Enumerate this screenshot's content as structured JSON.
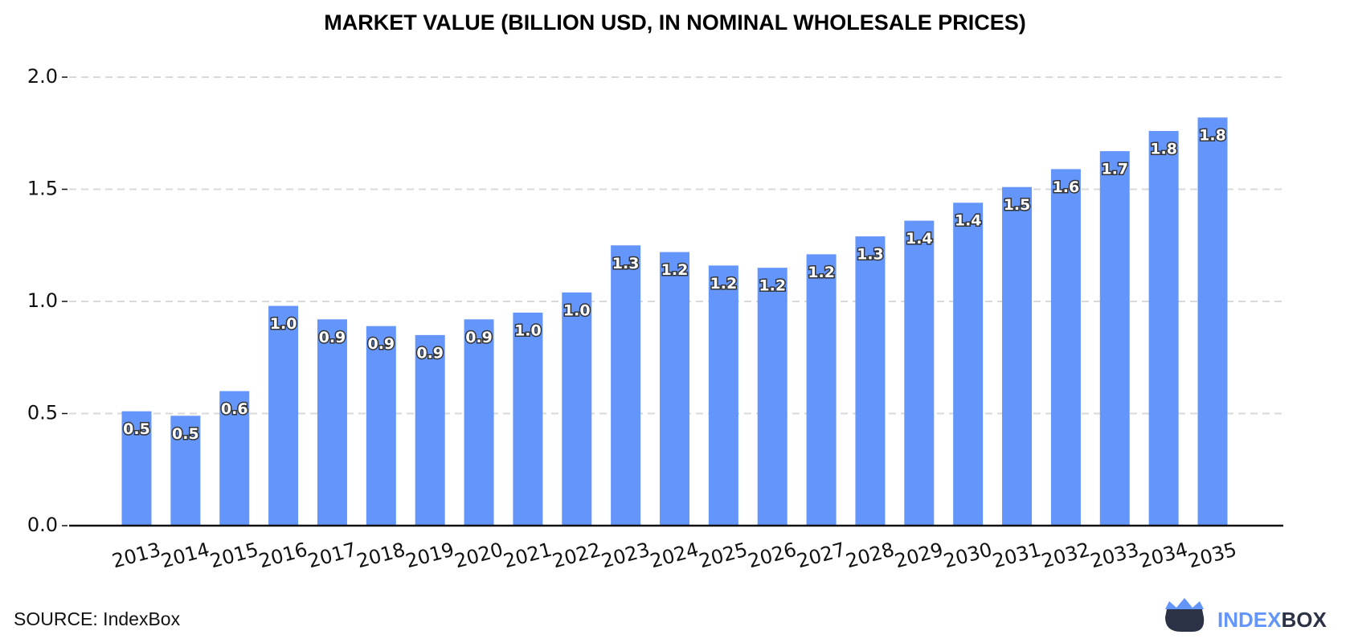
{
  "chart_data": {
    "type": "bar",
    "title": "MARKET VALUE (BILLION USD, IN NOMINAL WHOLESALE PRICES)",
    "categories": [
      "2013",
      "2014",
      "2015",
      "2016",
      "2017",
      "2018",
      "2019",
      "2020",
      "2021",
      "2022",
      "2023",
      "2024",
      "2025",
      "2026",
      "2027",
      "2028",
      "2029",
      "2030",
      "2031",
      "2032",
      "2033",
      "2034",
      "2035"
    ],
    "values": [
      0.51,
      0.49,
      0.6,
      0.98,
      0.92,
      0.89,
      0.85,
      0.92,
      0.95,
      1.04,
      1.25,
      1.22,
      1.16,
      1.15,
      1.21,
      1.29,
      1.36,
      1.44,
      1.51,
      1.59,
      1.67,
      1.76,
      1.82
    ],
    "value_labels": [
      "0.5",
      "0.5",
      "0.6",
      "1.0",
      "0.9",
      "0.9",
      "0.9",
      "0.9",
      "1.0",
      "1.0",
      "1.3",
      "1.2",
      "1.2",
      "1.2",
      "1.2",
      "1.3",
      "1.4",
      "1.4",
      "1.5",
      "1.6",
      "1.7",
      "1.8",
      "1.8"
    ],
    "color": "#6495fa",
    "ylim": [
      0,
      2
    ],
    "yticks": [
      {
        "value": 0,
        "label": "0.0"
      },
      0.5,
      {
        "value": 1,
        "label": "1.0"
      },
      1.5,
      {
        "value": 2,
        "label": "2.0"
      }
    ],
    "grid": true
  },
  "source": "SOURCE: IndexBox",
  "logo": {
    "left": "INDEX",
    "right": "BOX"
  }
}
